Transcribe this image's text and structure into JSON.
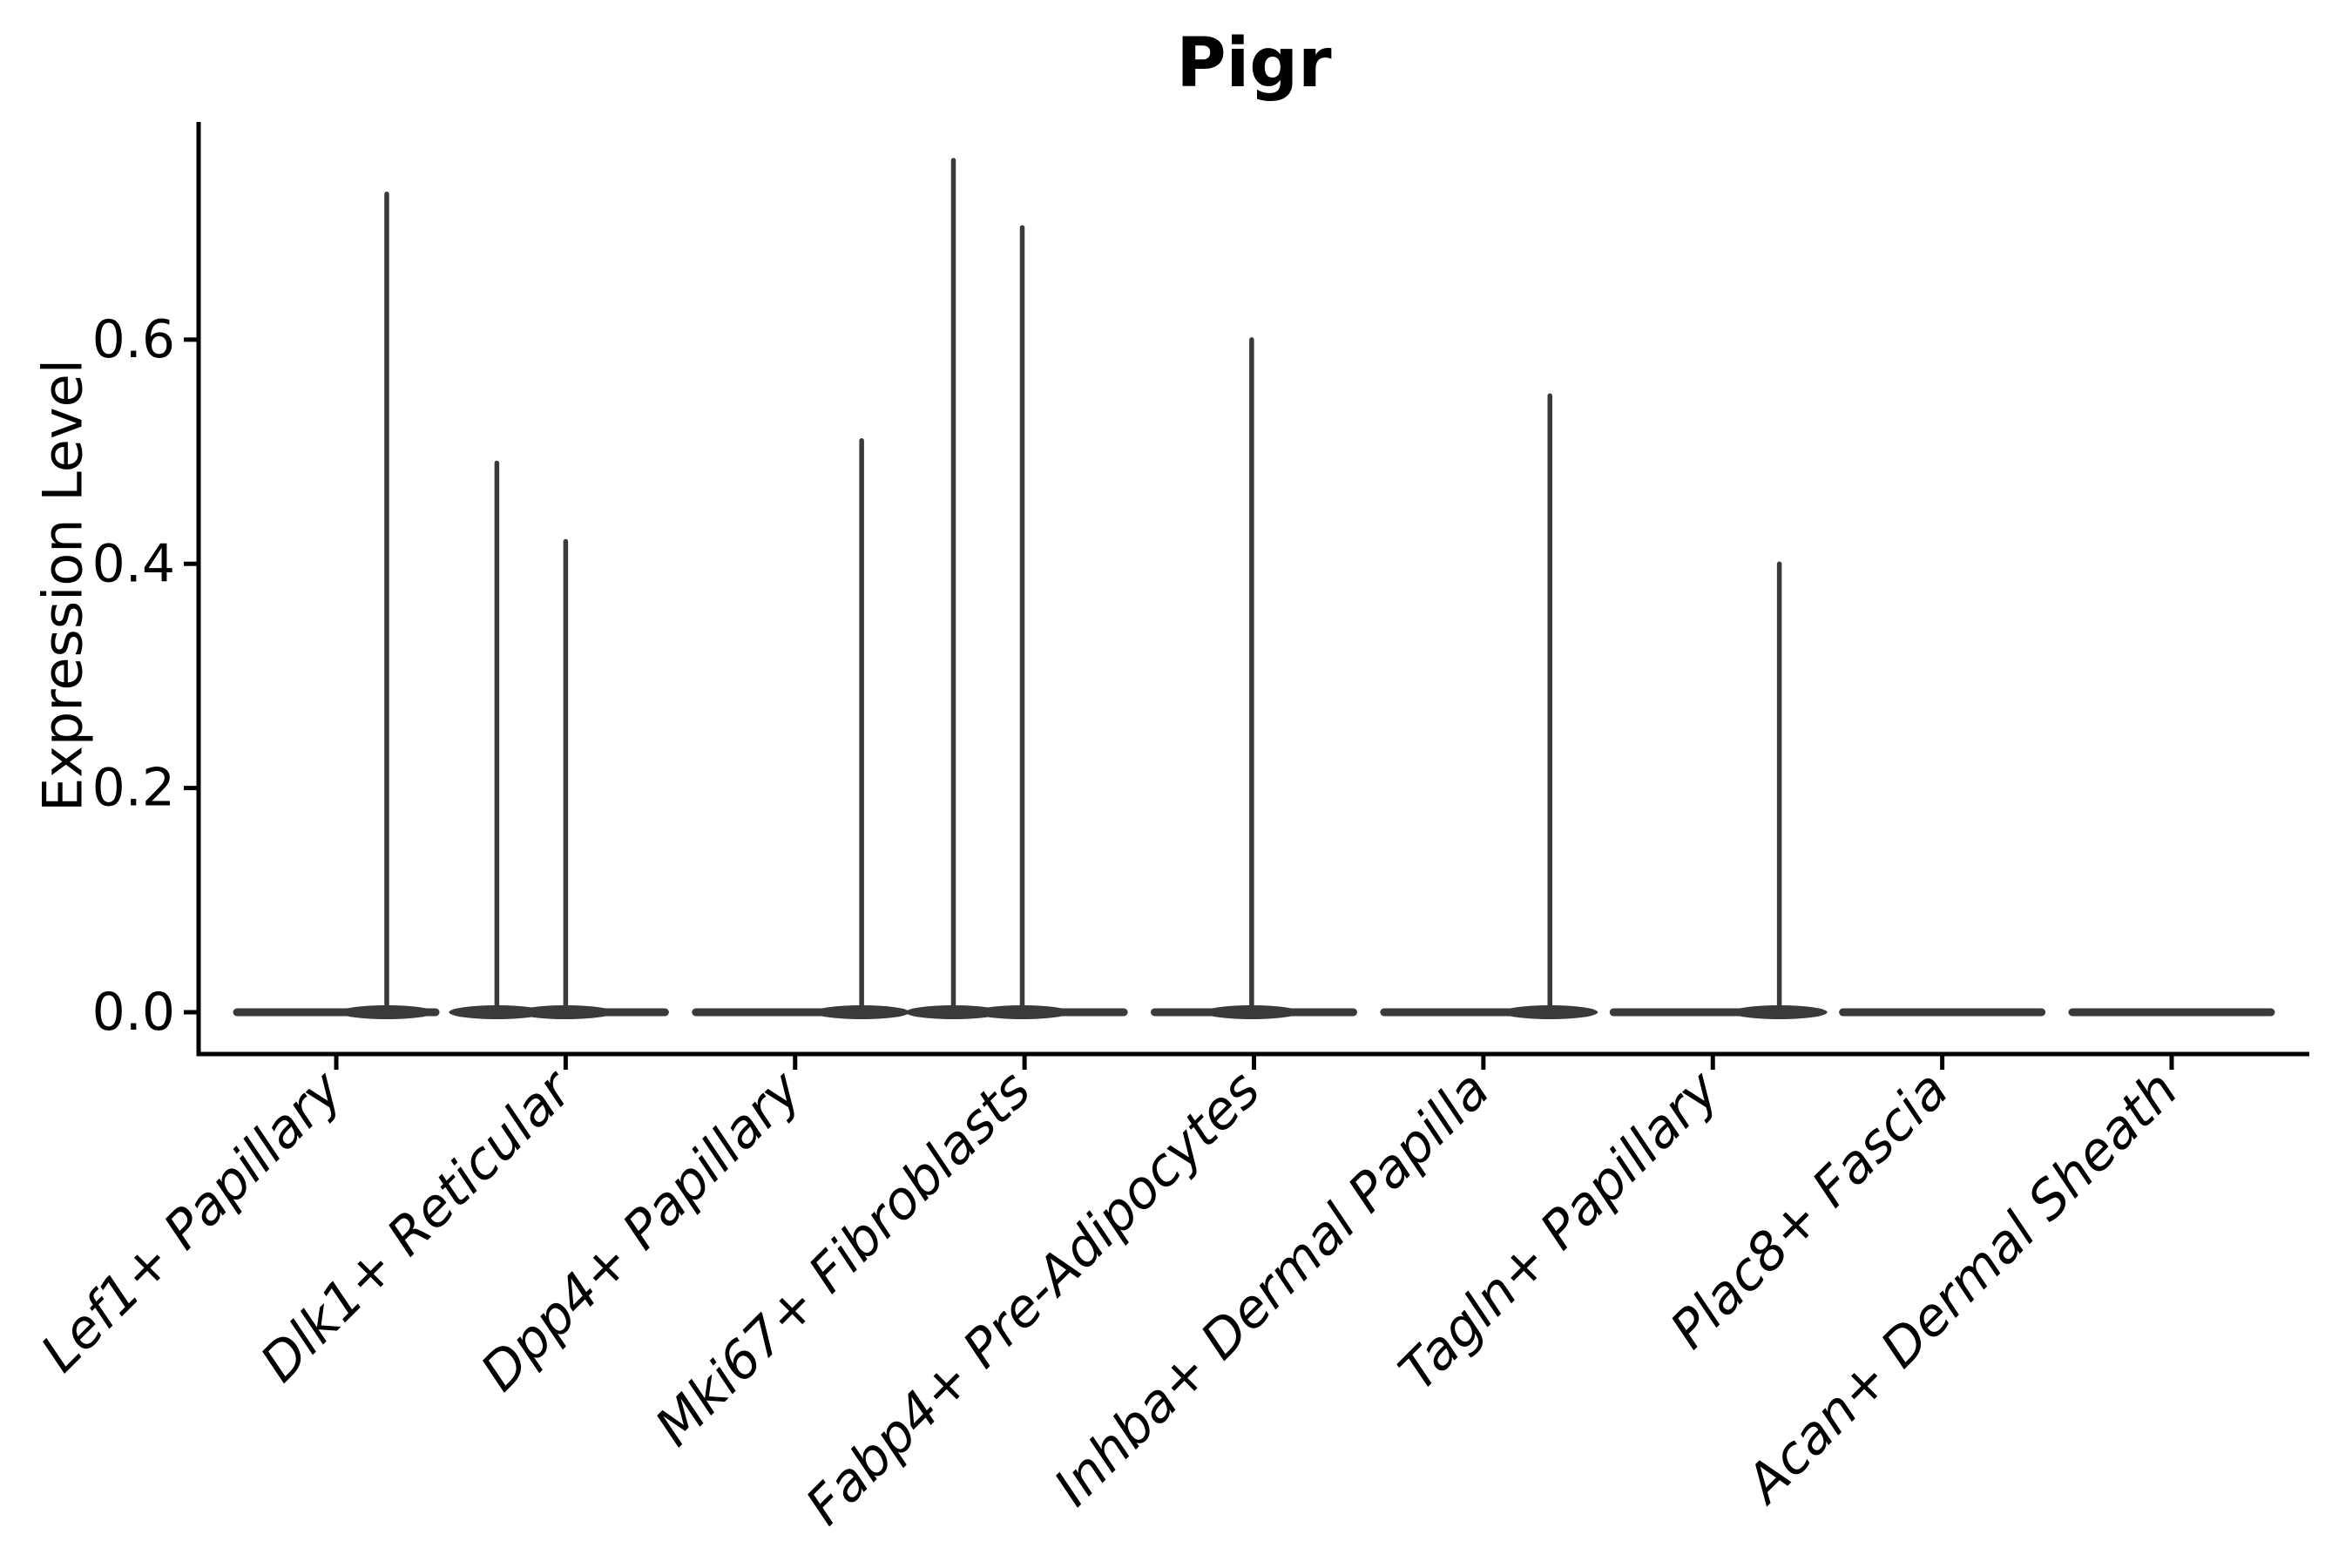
{
  "title": "Pigr",
  "y_axis_label": "Expression Level",
  "chart_data": {
    "type": "violin",
    "title": "Pigr",
    "xlabel": "",
    "ylabel": "Expression Level",
    "categories": [
      "Lef1+ Papillary",
      "Dlk1+ Reticular",
      "Dpp4+ Papillary",
      "Mki67+ Fibroblasts",
      "Fabp4+ Pre-Adipocytes",
      "Inhba+ Dermal Papilla",
      "Tagln+ Papillary",
      "Plac8+ Fascia",
      "Acan+ Dermal Sheath"
    ],
    "y_ticks": [
      0.0,
      0.2,
      0.4,
      0.6
    ],
    "ylim": [
      -0.04,
      0.79
    ],
    "grid": false,
    "legend": "none",
    "violin_color": "#3a3a3a",
    "axis_color": "#000000",
    "series": [
      {
        "category": "Lef1+ Papillary",
        "baseline": 0.0,
        "spikes": [
          {
            "max": 0.73,
            "offset_frac": 0.22
          }
        ]
      },
      {
        "category": "Dlk1+ Reticular",
        "baseline": 0.0,
        "spikes": [
          {
            "max": 0.49,
            "offset_frac": -0.3
          },
          {
            "max": 0.42,
            "offset_frac": 0.0
          }
        ]
      },
      {
        "category": "Dpp4+ Papillary",
        "baseline": 0.0,
        "spikes": [
          {
            "max": 0.51,
            "offset_frac": 0.29
          }
        ]
      },
      {
        "category": "Mki67+ Fibroblasts",
        "baseline": 0.0,
        "spikes": [
          {
            "max": 0.76,
            "offset_frac": -0.31
          },
          {
            "max": 0.7,
            "offset_frac": -0.01
          }
        ]
      },
      {
        "category": "Fabp4+ Pre-Adipocytes",
        "baseline": 0.0,
        "spikes": [
          {
            "max": 0.6,
            "offset_frac": -0.01
          }
        ]
      },
      {
        "category": "Inhba+ Dermal Papilla",
        "baseline": 0.0,
        "spikes": [
          {
            "max": 0.55,
            "offset_frac": 0.29
          }
        ]
      },
      {
        "category": "Tagln+ Papillary",
        "baseline": 0.0,
        "spikes": [
          {
            "max": 0.4,
            "offset_frac": 0.29
          }
        ]
      },
      {
        "category": "Plac8+ Fascia",
        "baseline": 0.0,
        "spikes": []
      },
      {
        "category": "Acan+ Dermal Sheath",
        "baseline": 0.0,
        "spikes": []
      }
    ]
  }
}
